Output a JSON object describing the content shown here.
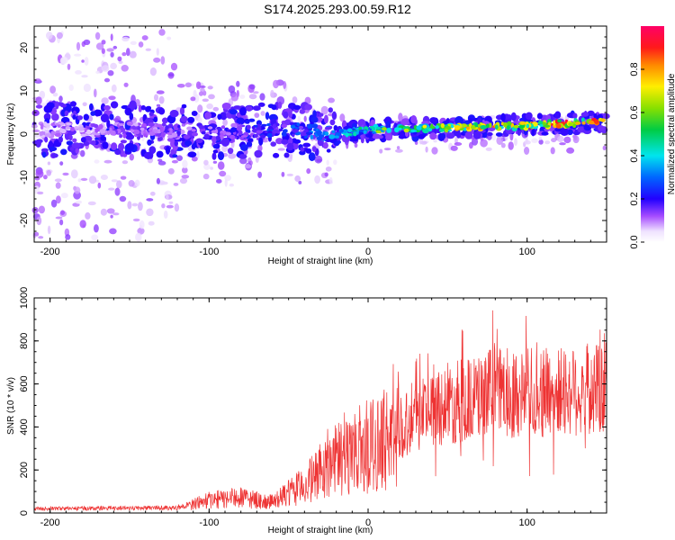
{
  "title": "S174.2025.293.00.59.R12",
  "chart_data": [
    {
      "type": "heatmap",
      "name": "spectrogram",
      "xlabel": "Height of straight line (km)",
      "ylabel": "Frequency (Hz)",
      "xlim": [
        -210,
        150
      ],
      "ylim": [
        -25,
        25
      ],
      "xticks": [
        -200,
        -100,
        0,
        100
      ],
      "xtick_labels": [
        "-200",
        "-100",
        "0",
        "100"
      ],
      "yticks": [
        -20,
        -10,
        0,
        10,
        20
      ],
      "ytick_labels": [
        "-20",
        "-10",
        "0",
        "10",
        "20"
      ],
      "colorbar": {
        "label": "Normalized spectral amplitude",
        "range": [
          0,
          1
        ],
        "ticks": [
          0.0,
          0.2,
          0.4,
          0.6,
          0.8
        ],
        "tick_labels": [
          "0.0",
          "0.2",
          "0.4",
          "0.6",
          "0.8"
        ]
      },
      "ridge_center_hz": [
        {
          "x": -210,
          "y": 1.0
        },
        {
          "x": -150,
          "y": 1.0
        },
        {
          "x": -100,
          "y": 0.5
        },
        {
          "x": -50,
          "y": 1.0
        },
        {
          "x": -20,
          "y": 0.0
        },
        {
          "x": 0,
          "y": 1.0
        },
        {
          "x": 50,
          "y": 1.5
        },
        {
          "x": 100,
          "y": 2.0
        },
        {
          "x": 150,
          "y": 3.0
        }
      ],
      "ridge_peak_amplitude": [
        {
          "x": -210,
          "y": 0.1
        },
        {
          "x": -100,
          "y": 0.2
        },
        {
          "x": -20,
          "y": 0.35
        },
        {
          "x": 0,
          "y": 0.6
        },
        {
          "x": 50,
          "y": 0.75
        },
        {
          "x": 100,
          "y": 0.9
        },
        {
          "x": 150,
          "y": 0.95
        }
      ]
    },
    {
      "type": "line",
      "name": "snr",
      "xlabel": "Height of straight line (km)",
      "ylabel": "SNR (10 * v/v)",
      "xlim": [
        -210,
        150
      ],
      "ylim": [
        0,
        1000
      ],
      "xticks": [
        -200,
        -100,
        0,
        100
      ],
      "xtick_labels": [
        "-200",
        "-100",
        "0",
        "100"
      ],
      "yticks": [
        0,
        200,
        400,
        600,
        800,
        1000
      ],
      "ytick_labels": [
        "0",
        "200",
        "400",
        "600",
        "800",
        "1000"
      ],
      "color": "#ee3333",
      "envelope": [
        {
          "x": -210,
          "y": 20
        },
        {
          "x": -120,
          "y": 25
        },
        {
          "x": -100,
          "y": 60
        },
        {
          "x": -80,
          "y": 70
        },
        {
          "x": -60,
          "y": 50
        },
        {
          "x": -40,
          "y": 130
        },
        {
          "x": -20,
          "y": 250
        },
        {
          "x": 0,
          "y": 300
        },
        {
          "x": 10,
          "y": 340
        },
        {
          "x": 20,
          "y": 400
        },
        {
          "x": 40,
          "y": 500
        },
        {
          "x": 60,
          "y": 520
        },
        {
          "x": 80,
          "y": 560
        },
        {
          "x": 100,
          "y": 560
        },
        {
          "x": 120,
          "y": 560
        },
        {
          "x": 150,
          "y": 580
        }
      ]
    }
  ]
}
